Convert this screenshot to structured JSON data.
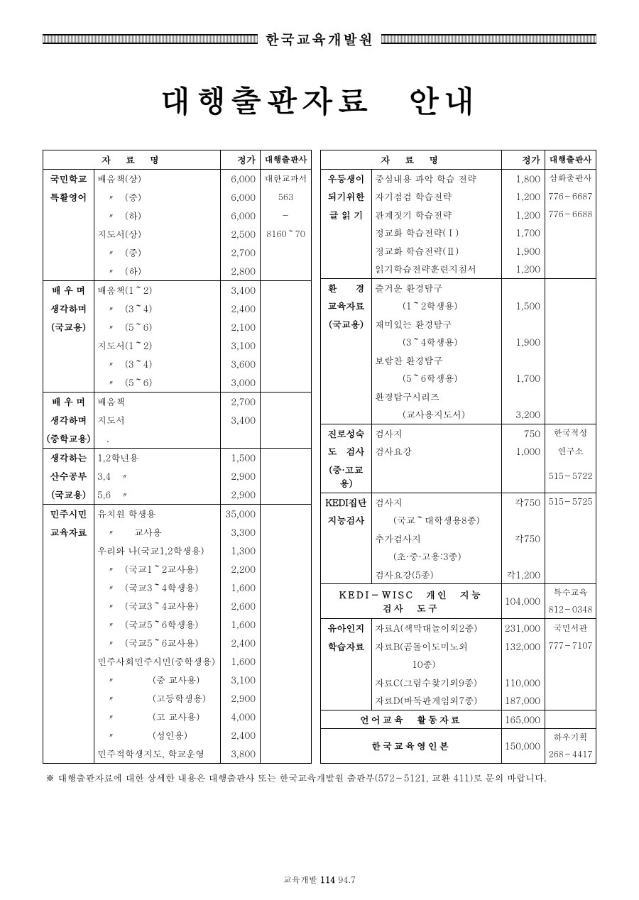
{
  "header": {
    "org": "한국교육개발원"
  },
  "main_title": "대행출판자료　안내",
  "table_headers": {
    "name": "자　료　명",
    "price": "정가",
    "publisher": "대행출판사"
  },
  "left": {
    "groups": [
      {
        "category": [
          "국민학교",
          "특활영어"
        ],
        "rows": [
          {
            "item": "배움책(상)",
            "price": "6,000",
            "pub": "대한교과서"
          },
          {
            "item": "　〃　(중)",
            "price": "6,000",
            "pub": "563"
          },
          {
            "item": "　〃　(하)",
            "price": "6,000",
            "pub": "－"
          },
          {
            "item": "지도서(상)",
            "price": "2,500",
            "pub": "8160～70"
          },
          {
            "item": "　〃　(중)",
            "price": "2,700",
            "pub": ""
          },
          {
            "item": "　〃　(하)",
            "price": "2,800",
            "pub": ""
          }
        ]
      },
      {
        "category": [
          "배 우 며",
          "생각하며",
          "(국교용)"
        ],
        "rows": [
          {
            "item": "배움책(1～2)",
            "price": "3,400",
            "pub": ""
          },
          {
            "item": "　〃　(3～4)",
            "price": "2,400",
            "pub": ""
          },
          {
            "item": "　〃　(5～6)",
            "price": "2,100",
            "pub": ""
          },
          {
            "item": "지도서(1～2)",
            "price": "3,100",
            "pub": ""
          },
          {
            "item": "　〃　(3～4)",
            "price": "3,600",
            "pub": ""
          },
          {
            "item": "　〃　(5～6)",
            "price": "3,000",
            "pub": ""
          }
        ]
      },
      {
        "category": [
          "배 우 며",
          "생각하며",
          "(중학교용)"
        ],
        "rows": [
          {
            "item": "배움책",
            "price": "2,700",
            "pub": ""
          },
          {
            "item": "지도서",
            "price": "3,400",
            "pub": ""
          },
          {
            "item": "　.",
            "price": "",
            "pub": ""
          }
        ]
      },
      {
        "category": [
          "생각하는",
          "산수공부",
          "(국교용)"
        ],
        "rows": [
          {
            "item": "1,2학년용",
            "price": "1,500",
            "pub": ""
          },
          {
            "item": "3,4　〃",
            "price": "2,900",
            "pub": ""
          },
          {
            "item": "5,6　〃",
            "price": "2,900",
            "pub": ""
          }
        ]
      },
      {
        "category": [
          "민주시민",
          "교육자료"
        ],
        "rows": [
          {
            "item": "유치원 학생용",
            "price": "35,000",
            "pub": ""
          },
          {
            "item": "　〃　　교사용",
            "price": "3,300",
            "pub": ""
          },
          {
            "item": "우리와 나(국교1,2학생용)",
            "price": "1,300",
            "pub": ""
          },
          {
            "item": "　〃　(국교1～2교사용)",
            "price": "2,200",
            "pub": ""
          },
          {
            "item": "　〃　(국교3～4학생용)",
            "price": "1,600",
            "pub": ""
          },
          {
            "item": "　〃　(국교3～4교사용)",
            "price": "2,600",
            "pub": ""
          },
          {
            "item": "　〃　(국교5～6학생용)",
            "price": "1,600",
            "pub": ""
          },
          {
            "item": "　〃　(국교5～6교사용)",
            "price": "2,400",
            "pub": ""
          },
          {
            "item": "민주사회민주시민(중학생용)",
            "price": "1,600",
            "pub": ""
          },
          {
            "item": "　〃　　　　(중 교사용)",
            "price": "3,100",
            "pub": ""
          },
          {
            "item": "　〃　　　　(고등학생용)",
            "price": "2,900",
            "pub": ""
          },
          {
            "item": "　〃　　　　(고 교사용)",
            "price": "4,000",
            "pub": ""
          },
          {
            "item": "　〃　　　　(성인용)",
            "price": "2,400",
            "pub": ""
          },
          {
            "item": "민주적학생지도, 학교운영",
            "price": "3,800",
            "pub": ""
          }
        ]
      }
    ]
  },
  "right": {
    "groups": [
      {
        "category": [
          "우등생이",
          "되기위한",
          "글 읽 기"
        ],
        "rows": [
          {
            "item": "중심내용 파악 학습 전략",
            "price": "1,800",
            "pub": "삼화출판사"
          },
          {
            "item": "자기점검 학습전략",
            "price": "1,200",
            "pub": "776－6687"
          },
          {
            "item": "관계짓기 학습전략",
            "price": "1,200",
            "pub": "776－6688"
          },
          {
            "item": "정교화 학습전략(Ⅰ)",
            "price": "1,700",
            "pub": ""
          },
          {
            "item": "정교화 학습전략(Ⅱ)",
            "price": "1,900",
            "pub": ""
          },
          {
            "item": "읽기학습전략훈련지침서",
            "price": "1,200",
            "pub": ""
          }
        ]
      },
      {
        "category": [
          "환　　경",
          "교육자료",
          "(국교용)"
        ],
        "rows": [
          {
            "item": "즐거운 환경탐구",
            "price": "",
            "pub": ""
          },
          {
            "item": "　　　(1～2학생용)",
            "price": "1,500",
            "pub": ""
          },
          {
            "item": "재미있는 환경탐구",
            "price": "",
            "pub": ""
          },
          {
            "item": "　　　(3～4학생용)",
            "price": "1,900",
            "pub": ""
          },
          {
            "item": "보람찬 환경탐구",
            "price": "",
            "pub": ""
          },
          {
            "item": "　　　(5～6학생용)",
            "price": "1,700",
            "pub": ""
          },
          {
            "item": "환경탐구시리즈",
            "price": "",
            "pub": ""
          },
          {
            "item": "　　　(교사용지도서)",
            "price": "3,200",
            "pub": ""
          }
        ]
      },
      {
        "category": [
          "진로성숙",
          "도　검사",
          "(중·고교용)"
        ],
        "rows": [
          {
            "item": "검사지",
            "price": "750",
            "pub": "한국적성"
          },
          {
            "item": "검사요강",
            "price": "1,000",
            "pub": "연구소"
          },
          {
            "item": "",
            "price": "",
            "pub": "515－5722"
          }
        ]
      },
      {
        "category": [
          "KEDI집단",
          "지능검사"
        ],
        "rows": [
          {
            "item": "검사지",
            "price": "각750",
            "pub": "515－5725"
          },
          {
            "item": "　　(국교～대학생용8종)",
            "price": "",
            "pub": ""
          },
          {
            "item": "추가검사지",
            "price": "각750",
            "pub": ""
          },
          {
            "item": "　　(초·중·고용:3종)",
            "price": "",
            "pub": ""
          },
          {
            "item": "검사요강(5종)",
            "price": "각1,200",
            "pub": ""
          }
        ]
      }
    ],
    "merged": [
      {
        "title": "KEDI－WISC　개인　지능\n검사　도구",
        "price": "104,000",
        "pub": [
          "특수교육",
          "812－0348"
        ]
      }
    ],
    "groups2": [
      {
        "category": [
          "유아인지",
          "학습자료"
        ],
        "rows": [
          {
            "item": "자료A(색막대놀이외2종)",
            "price": "231,000",
            "pub": "국민서관"
          },
          {
            "item": "자료B(곰돌이도미노외",
            "price": "132,000",
            "pub": "777－7107"
          },
          {
            "item": "　　　　10종)",
            "price": "",
            "pub": ""
          },
          {
            "item": "자료C(그림수찾기외9종)",
            "price": "110,000",
            "pub": ""
          },
          {
            "item": "자료D(바둑판게임외7종)",
            "price": "187,000",
            "pub": ""
          }
        ]
      }
    ],
    "merged2": [
      {
        "title": "언어교육　활동자료",
        "price": "165,000",
        "pub": [
          "",
          ""
        ]
      },
      {
        "title": "한국교육영인본",
        "price": "150,000",
        "pub": [
          "하우기획",
          "268－4417"
        ]
      }
    ]
  },
  "footnote": "※ 대행출판자료에 대한 상세한 내용은 대행출판사 또는 한국교육개발원 출판부(572－5121, 교환 411)로 문의 바랍니다.",
  "page": {
    "label": "교육개발",
    "num": "114",
    "suffix": "94.7"
  }
}
